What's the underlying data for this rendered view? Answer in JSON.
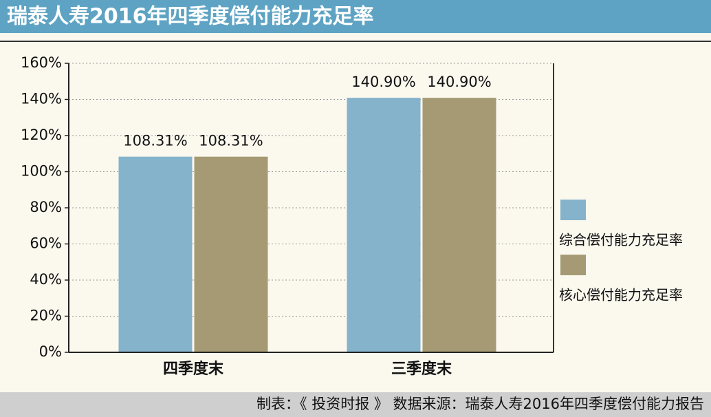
{
  "chart_data": {
    "type": "bar",
    "title": "瑞泰人寿2016年四季度偿付能力充足率",
    "categories": [
      "四季度末",
      "三季度末"
    ],
    "series": [
      {
        "name": "综合偿付能力充足率",
        "color": "#85b3cb",
        "values": [
          108.31,
          140.9
        ],
        "value_labels": [
          "108.31%",
          "140.90%"
        ]
      },
      {
        "name": "核心偿付能力充足率",
        "color": "#a59a74",
        "values": [
          108.31,
          140.9
        ],
        "value_labels": [
          "108.31%",
          "140.90%"
        ]
      }
    ],
    "ylim": [
      0,
      160
    ],
    "yticks": [
      {
        "value": 0,
        "label": "0%"
      },
      {
        "value": 20,
        "label": "20%"
      },
      {
        "value": 40,
        "label": "40%"
      },
      {
        "value": 60,
        "label": "60%"
      },
      {
        "value": 80,
        "label": "80%"
      },
      {
        "value": 100,
        "label": "100%"
      },
      {
        "value": 120,
        "label": "120%"
      },
      {
        "value": 140,
        "label": "140%"
      },
      {
        "value": 160,
        "label": "160%"
      }
    ],
    "grid": true,
    "legend": "right",
    "source": "制表：《 投资时报 》   数据来源：瑞泰人寿2016年四季度偿付能力报告"
  }
}
